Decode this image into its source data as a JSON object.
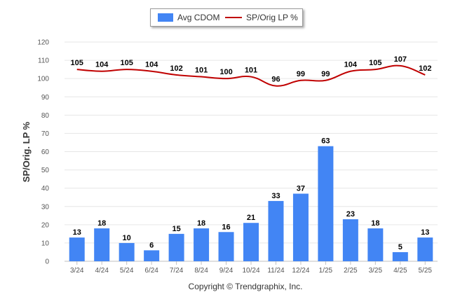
{
  "chart_data": {
    "type": "bar",
    "categories": [
      "3/24",
      "4/24",
      "5/24",
      "6/24",
      "7/24",
      "8/24",
      "9/24",
      "10/24",
      "11/24",
      "12/24",
      "1/25",
      "2/25",
      "3/25",
      "4/25",
      "5/25"
    ],
    "series": [
      {
        "name": "Avg CDOM",
        "kind": "bar",
        "color": "#4285f4",
        "values": [
          13,
          18,
          10,
          6,
          15,
          18,
          16,
          21,
          33,
          37,
          63,
          23,
          18,
          5,
          13
        ]
      },
      {
        "name": "SP/Orig LP %",
        "kind": "line",
        "color": "#c00000",
        "values": [
          105,
          104,
          105,
          104,
          102,
          101,
          100,
          101,
          96,
          99,
          99,
          104,
          105,
          107,
          102
        ]
      }
    ],
    "ylabel": "SP/Orig. LP %",
    "ylim": [
      0,
      120
    ],
    "yticks": [
      0,
      10,
      20,
      30,
      40,
      50,
      60,
      70,
      80,
      90,
      100,
      110,
      120
    ],
    "grid": true,
    "legend_position": "top-center"
  },
  "footer": "Copyright © Trendgraphix, Inc."
}
